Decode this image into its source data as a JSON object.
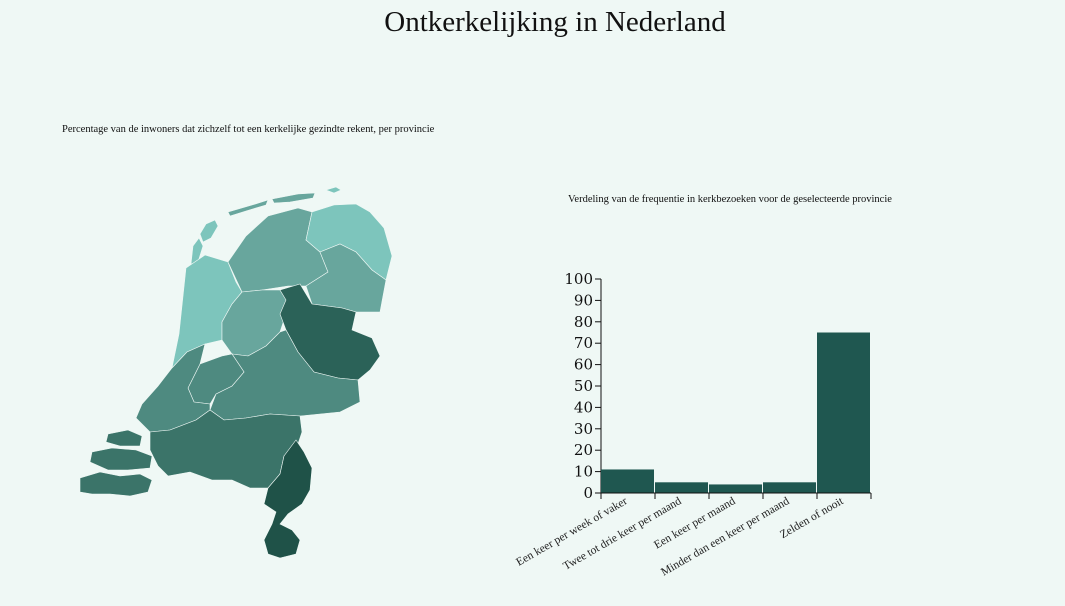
{
  "title": "Ontkerkelijking in Nederland",
  "map": {
    "caption": "Percentage van de inwoners dat zichzelf tot een kerkelijke gezindte rekent, per provincie",
    "colors": {
      "light": "#7dc5bc",
      "mid_light": "#68a69d",
      "mid": "#4e8a80",
      "mid_dark": "#3b7469",
      "dark": "#2b6258",
      "darkest": "#1f5248"
    }
  },
  "chart_data": {
    "type": "bar",
    "title": "Verdeling van de frequentie in kerkbezoeken voor de geselecteerde provincie",
    "categories": [
      "Een keer per week of vaker",
      "Twee tot drie keer per maand",
      "Een keer per maand",
      "Minder dan een keer per maand",
      "Zelden of nooit"
    ],
    "values": [
      11,
      5,
      4,
      5,
      75
    ],
    "ylim": [
      0,
      100
    ],
    "yticks": [
      "0",
      "10",
      "20",
      "30",
      "40",
      "50",
      "60",
      "70",
      "80",
      "90",
      "100"
    ],
    "bar_color": "#1f5750"
  }
}
